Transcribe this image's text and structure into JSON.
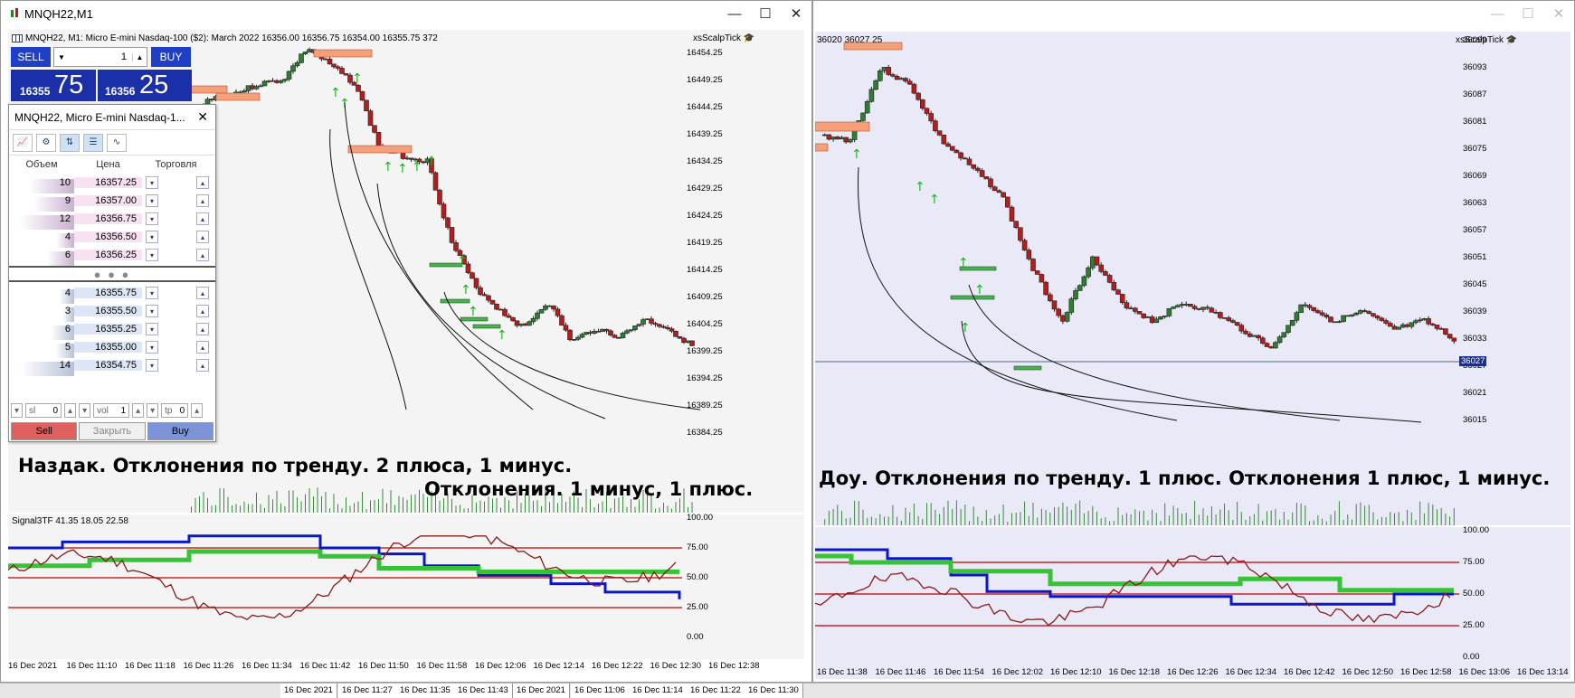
{
  "left_window": {
    "title": "MNQH22,M1",
    "info_line": "MNQH22, M1:  Micro E-mini Nasdaq-100 ($2): March 2022  16356.00  16356.75  16354.00  16355.75  372",
    "indicator_name": "xsScalpTick",
    "price_axis": [
      "16454.25",
      "16449.25",
      "16444.25",
      "16439.25",
      "16434.25",
      "16429.25",
      "16424.25",
      "16419.25",
      "16414.25",
      "16409.25",
      "16404.25",
      "16399.25",
      "16394.25",
      "16389.25",
      "16384.25"
    ],
    "osc_label": "Signal3TF  41.35  18.05  22.58",
    "osc_axis": [
      "100.00",
      "75.00",
      "50.00",
      "25.00",
      "0.00"
    ],
    "time_axis": [
      "16 Dec 2021",
      "16 Dec 11:10",
      "16 Dec 11:18",
      "16 Dec 11:26",
      "16 Dec 11:34",
      "16 Dec 11:42",
      "16 Dec 11:50",
      "16 Dec 11:58",
      "16 Dec 12:06",
      "16 Dec 12:14",
      "16 Dec 12:22",
      "16 Dec 12:30",
      "16 Dec 12:38"
    ],
    "caption1": "Наздак. Отклонения по тренду. 2 плюса, 1 минус.",
    "caption2": "Отклонения. 1 минус, 1 плюс."
  },
  "trade_panel": {
    "sell_label": "SELL",
    "buy_label": "BUY",
    "volume": "1",
    "sell_small": "16355",
    "sell_big": "75",
    "buy_small": "16356",
    "buy_big": "25"
  },
  "dom": {
    "title": "MNQH22, Micro E-mini Nasdaq-1...",
    "col_volume": "Объем",
    "col_price": "Цена",
    "col_trade": "Торговля",
    "asks": [
      {
        "vol": "10",
        "price": "16357.25"
      },
      {
        "vol": "9",
        "price": "16357.00"
      },
      {
        "vol": "12",
        "price": "16356.75"
      },
      {
        "vol": "4",
        "price": "16356.50"
      },
      {
        "vol": "6",
        "price": "16356.25"
      }
    ],
    "bids": [
      {
        "vol": "4",
        "price": "16355.75"
      },
      {
        "vol": "3",
        "price": "16355.50"
      },
      {
        "vol": "6",
        "price": "16355.25"
      },
      {
        "vol": "5",
        "price": "16355.00"
      },
      {
        "vol": "14",
        "price": "16354.75"
      }
    ],
    "sl_label": "sl",
    "sl_value": "0",
    "vol_label": "vol",
    "vol_value": "1",
    "tp_label": "tp",
    "tp_value": "0",
    "sell_btn": "Sell",
    "close_btn": "Закрыть",
    "buy_btn": "Buy"
  },
  "right_window": {
    "info_line": "36020  36027  25",
    "indicator_name": "xsScalpTick",
    "price_axis": [
      "36099",
      "36093",
      "36087",
      "36081",
      "36075",
      "36069",
      "36063",
      "36057",
      "36051",
      "36045",
      "36039",
      "36033",
      "36027",
      "36021",
      "36015"
    ],
    "current_price": "36027",
    "osc_axis": [
      "100.00",
      "75.00",
      "50.00",
      "25.00",
      "0.00"
    ],
    "time_axis": [
      "16 Dec 11:38",
      "16 Dec 11:46",
      "16 Dec 11:54",
      "16 Dec 12:02",
      "16 Dec 12:10",
      "16 Dec 12:18",
      "16 Dec 12:26",
      "16 Dec 12:34",
      "16 Dec 12:42",
      "16 Dec 12:50",
      "16 Dec 12:58",
      "16 Dec 13:06",
      "16 Dec 13:14"
    ],
    "caption": "Доу. Отклонения по тренду. 1 плюс. Отклонения 1 плюс, 1 минус."
  },
  "bottom_tabs": [
    "16 Dec 2021",
    "16 Dec 11:27",
    "16 Dec 11:35",
    "16 Dec 11:43",
    "16 Dec 2021",
    "16 Dec 11:06",
    "16 Dec 11:14",
    "16 Dec 11:22",
    "16 Dec 11:30"
  ],
  "colors": {
    "bull": "#2e7d32",
    "bear": "#b71c1c",
    "sell_btn": "#1f3fc4",
    "zone": "#f4a07a",
    "osc_blue": "#0b16c8",
    "osc_green": "#36c436",
    "osc_red": "#c00000"
  }
}
